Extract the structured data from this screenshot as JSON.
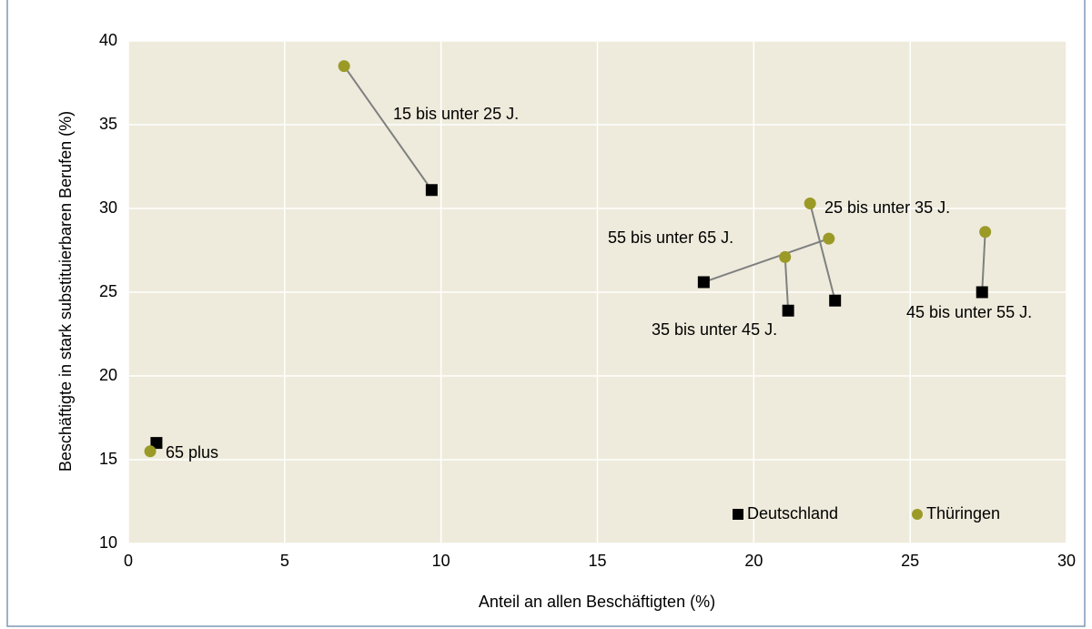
{
  "chart_data": {
    "type": "scatter",
    "x_label": "Anteil an allen Beschäftigten (%)",
    "y_label": "Beschäftigte in stark substituierbaren Berufen (%)",
    "groups": [
      "15 bis unter 25 J.",
      "25 bis unter 35 J.",
      "35 bis unter 45 J.",
      "45 bis unter 55 J.",
      "55 bis unter 65 J.",
      "65 plus"
    ],
    "series": [
      {
        "name": "Deutschland",
        "color": "#000000",
        "marker": "square",
        "x": [
          9.7,
          22.6,
          21.1,
          27.3,
          18.4,
          0.9
        ],
        "values": [
          31.1,
          24.5,
          23.9,
          25.0,
          25.6,
          16.0
        ]
      },
      {
        "name": "Thüringen",
        "color": "#9b9a26",
        "marker": "circle",
        "x": [
          6.9,
          21.8,
          21.0,
          27.4,
          22.4,
          0.7
        ],
        "values": [
          38.5,
          30.3,
          27.1,
          28.6,
          28.2,
          15.5
        ]
      }
    ],
    "xlim": [
      0,
      30
    ],
    "xticks": [
      0,
      5,
      10,
      15,
      20,
      25,
      30
    ],
    "ylim": [
      10,
      40
    ],
    "yticks": [
      10,
      15,
      20,
      25,
      30,
      35,
      40
    ],
    "grid": true,
    "connector_color": "#808080",
    "legend": "lower right"
  }
}
